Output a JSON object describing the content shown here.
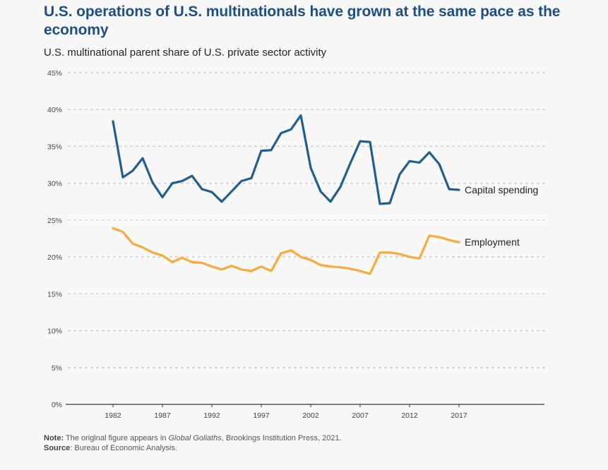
{
  "header": {
    "title": "U.S. operations of U.S. multinationals have grown at the same pace as the economy",
    "subtitle": "U.S. multinational parent share of U.S. private sector activity"
  },
  "footer": {
    "note_label": "Note:",
    "note_text_pre": " The original figure appears in ",
    "note_italic": "Global Goliaths",
    "note_text_post": ", Brookings Institution Press, 2021.",
    "source_label": "Source",
    "source_text": ": Bureau of Economic Analysis."
  },
  "chart_data": {
    "type": "line",
    "title": "U.S. operations of U.S. multinationals have grown at the same pace as the economy",
    "subtitle": "U.S. multinational parent share of U.S. private sector activity",
    "xlabel": "",
    "ylabel": "",
    "xlim": [
      1977,
      2026
    ],
    "ylim": [
      0,
      45
    ],
    "x_ticks": [
      1982,
      1987,
      1992,
      1997,
      2002,
      2007,
      2012,
      2017
    ],
    "y_ticks": [
      0,
      5,
      10,
      15,
      20,
      25,
      30,
      35,
      40,
      45
    ],
    "y_tick_labels": [
      "0%",
      "5%",
      "10%",
      "15%",
      "20%",
      "25%",
      "30%",
      "35%",
      "40%",
      "45%"
    ],
    "grid": "horizontal-dotted",
    "legend": "inline-right",
    "x": [
      1982,
      1983,
      1984,
      1985,
      1986,
      1987,
      1988,
      1989,
      1990,
      1991,
      1992,
      1993,
      1994,
      1995,
      1996,
      1997,
      1998,
      1999,
      2000,
      2001,
      2002,
      2003,
      2004,
      2005,
      2006,
      2007,
      2008,
      2009,
      2010,
      2011,
      2012,
      2013,
      2014,
      2015,
      2016,
      2017
    ],
    "series": [
      {
        "name": "Capital spending",
        "color": "#1f5f8f",
        "values": [
          38.4,
          30.8,
          31.7,
          33.4,
          30.1,
          28.1,
          30.0,
          30.3,
          31.0,
          29.2,
          28.8,
          27.5,
          28.9,
          30.3,
          30.7,
          34.4,
          34.5,
          36.8,
          37.3,
          39.2,
          32.1,
          28.9,
          27.5,
          29.5,
          32.7,
          35.7,
          35.6,
          27.2,
          27.3,
          31.2,
          33.0,
          32.8,
          34.2,
          32.6,
          29.2,
          29.1
        ]
      },
      {
        "name": "Employment",
        "color": "#fca83a",
        "values": [
          23.9,
          23.4,
          21.8,
          21.3,
          20.6,
          20.2,
          19.3,
          19.9,
          19.3,
          19.2,
          18.7,
          18.3,
          18.8,
          18.3,
          18.1,
          18.7,
          18.1,
          20.5,
          20.9,
          20.0,
          19.6,
          18.9,
          18.7,
          18.6,
          18.4,
          18.1,
          17.7,
          20.6,
          20.6,
          20.4,
          20.0,
          19.8,
          22.9,
          22.7,
          22.3,
          22.0
        ]
      }
    ]
  }
}
